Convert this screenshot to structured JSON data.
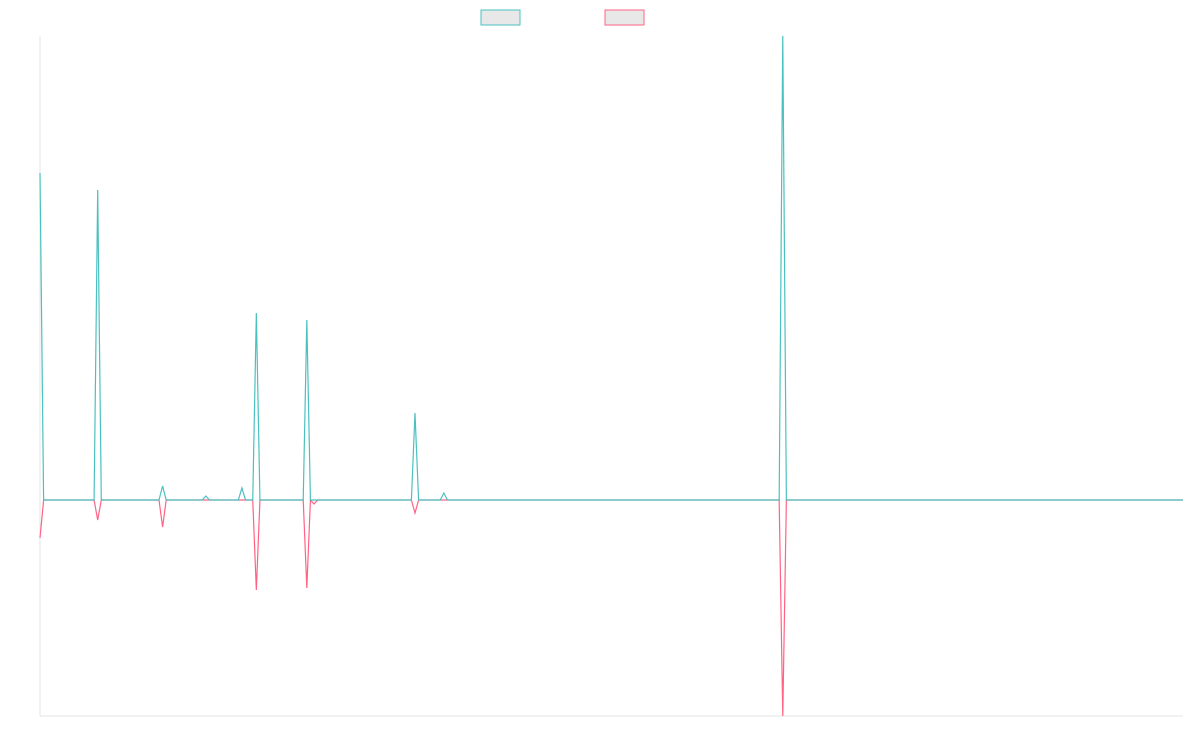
{
  "chart_data": {
    "type": "line",
    "x": [
      0,
      1,
      15,
      16,
      17,
      33,
      34,
      35,
      45,
      46,
      47,
      55,
      56,
      57,
      59,
      60,
      61,
      68,
      73,
      74,
      75,
      76,
      77,
      82,
      103,
      104,
      105,
      111,
      112,
      113,
      205,
      206,
      207,
      317
    ],
    "series": [
      {
        "color": "#ff6384",
        "values": [
          -38,
          0,
          0,
          -20,
          0,
          0,
          -27,
          0,
          0,
          0,
          0,
          0,
          0,
          0,
          0,
          -90,
          0,
          0,
          0,
          -88,
          0,
          -4,
          0,
          0,
          0,
          -13,
          0,
          0,
          0,
          0,
          0,
          -216,
          0,
          0
        ]
      },
      {
        "color": "#4bc0c0",
        "values": [
          327,
          0,
          0,
          310,
          0,
          0,
          14,
          0,
          0,
          4,
          0,
          0,
          12,
          0,
          0,
          187,
          0,
          0,
          0,
          180,
          0,
          0,
          0,
          0,
          0,
          87,
          0,
          0,
          7,
          0,
          0,
          464,
          0,
          0
        ]
      }
    ],
    "xlim": [
      0,
      317
    ],
    "ylim": [
      -216,
      464
    ]
  }
}
